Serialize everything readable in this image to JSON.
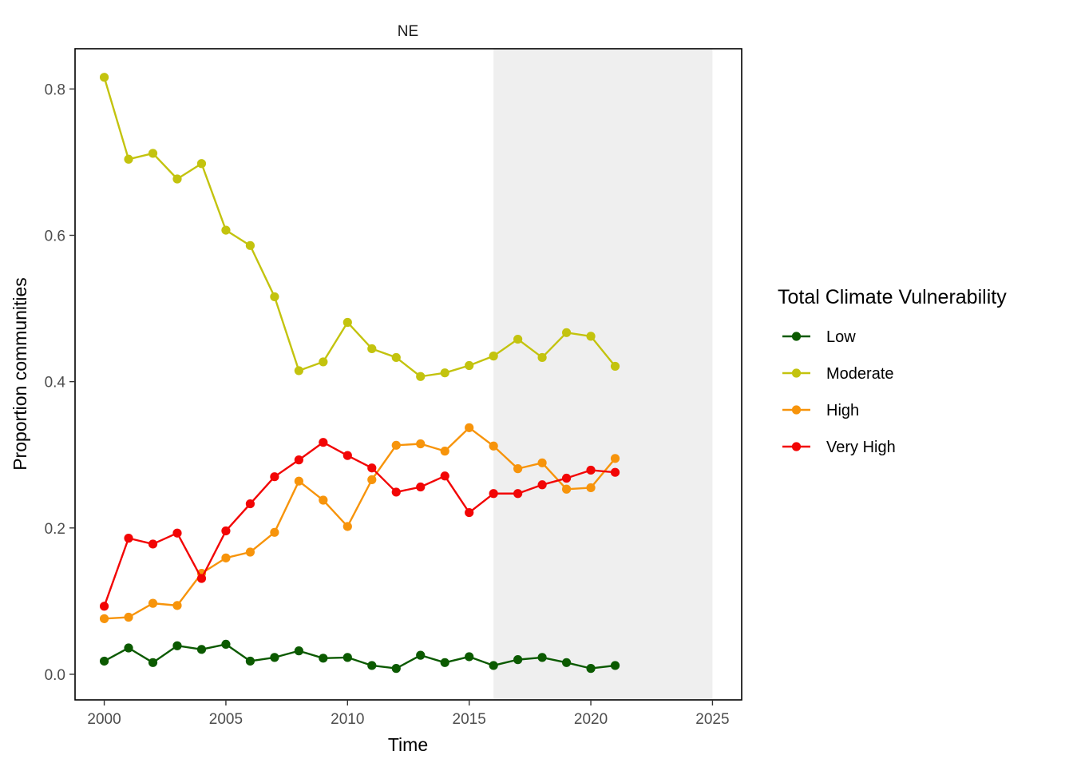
{
  "chart_data": {
    "type": "line",
    "title": "NE",
    "xlabel": "Time",
    "ylabel": "Proportion communities",
    "xlim": [
      1998.8,
      2026.2
    ],
    "ylim": [
      -0.035,
      0.855
    ],
    "x_ticks": [
      2000,
      2005,
      2010,
      2015,
      2020,
      2025
    ],
    "y_ticks": [
      0.0,
      0.2,
      0.4,
      0.6,
      0.8
    ],
    "x_tick_labels": [
      "2000",
      "2005",
      "2010",
      "2015",
      "2020",
      "2025"
    ],
    "y_tick_labels": [
      "0.0",
      "0.2",
      "0.4",
      "0.6",
      "0.8"
    ],
    "shaded_region": {
      "x_start": 2016,
      "x_end": 2025,
      "color": "#efefef"
    },
    "grid": false,
    "legend": {
      "title": "Total Climate Vulnerability",
      "position": "right"
    },
    "x": [
      2000,
      2001,
      2002,
      2003,
      2004,
      2005,
      2006,
      2007,
      2008,
      2009,
      2010,
      2011,
      2012,
      2013,
      2014,
      2015,
      2016,
      2017,
      2018,
      2019,
      2020,
      2021
    ],
    "series": [
      {
        "name": "Low",
        "color": "#0b5a00",
        "values": [
          0.018,
          0.036,
          0.016,
          0.039,
          0.034,
          0.041,
          0.018,
          0.023,
          0.032,
          0.022,
          0.023,
          0.012,
          0.008,
          0.026,
          0.016,
          0.024,
          0.012,
          0.02,
          0.023,
          0.016,
          0.008,
          0.012
        ]
      },
      {
        "name": "Moderate",
        "color": "#c3c30e",
        "values": [
          0.816,
          0.704,
          0.712,
          0.677,
          0.698,
          0.607,
          0.586,
          0.516,
          0.415,
          0.427,
          0.481,
          0.445,
          0.433,
          0.407,
          0.412,
          0.422,
          0.435,
          0.458,
          0.433,
          0.467,
          0.462,
          0.421
        ]
      },
      {
        "name": "High",
        "color": "#f7940b",
        "values": [
          0.076,
          0.078,
          0.097,
          0.094,
          0.138,
          0.159,
          0.167,
          0.194,
          0.264,
          0.238,
          0.202,
          0.266,
          0.313,
          0.315,
          0.305,
          0.337,
          0.312,
          0.281,
          0.289,
          0.253,
          0.255,
          0.295
        ]
      },
      {
        "name": "Very High",
        "color": "#f20505",
        "values": [
          0.093,
          0.186,
          0.178,
          0.193,
          0.131,
          0.196,
          0.233,
          0.27,
          0.293,
          0.317,
          0.299,
          0.282,
          0.249,
          0.256,
          0.271,
          0.221,
          0.247,
          0.247,
          0.259,
          0.268,
          0.279,
          0.276
        ]
      }
    ]
  }
}
